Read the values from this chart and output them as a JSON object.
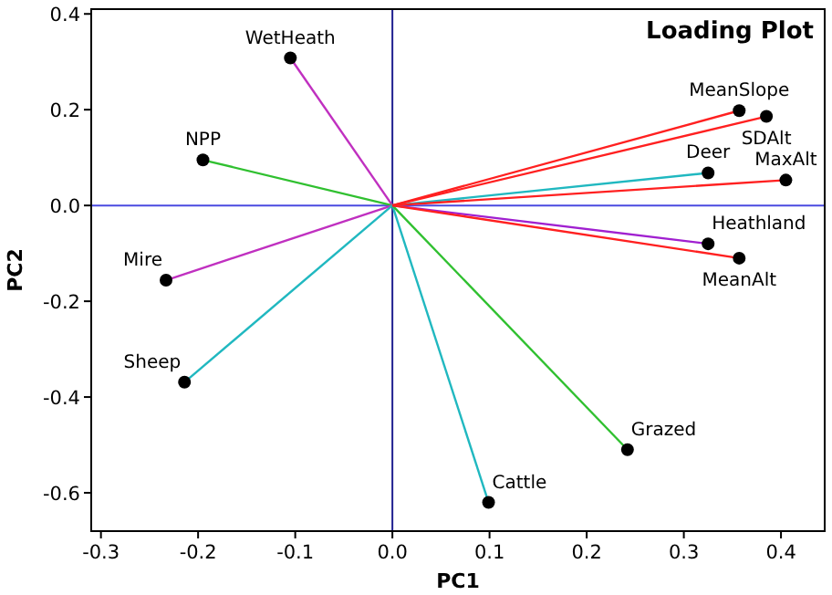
{
  "chart_data": {
    "type": "line",
    "title": "Loading Plot",
    "xlabel": "PC1",
    "ylabel": "PC2",
    "xlim": [
      -0.31,
      0.445
    ],
    "ylim": [
      -0.68,
      0.41
    ],
    "xticks": [
      -0.3,
      -0.2,
      -0.1,
      {
        "value": 0,
        "label": "0.0"
      },
      0.1,
      0.2,
      0.3,
      0.4
    ],
    "yticks": [
      -0.6,
      -0.4,
      -0.2,
      {
        "value": 0,
        "label": "0.0"
      },
      0.2,
      0.4
    ],
    "grid": false,
    "line_style": "solid",
    "ref_lines": [
      {
        "axis": "x",
        "value": 0,
        "color": "#202090"
      },
      {
        "axis": "y",
        "value": 0,
        "color": "#4a4ae0"
      }
    ],
    "series": [
      {
        "name": "WetHeath",
        "color": "#c030c0",
        "x": [
          0,
          -0.105
        ],
        "values": [
          0,
          0.308
        ],
        "marker": "none"
      },
      {
        "name": "NPP",
        "color": "#30c030",
        "x": [
          0,
          -0.195
        ],
        "values": [
          0,
          0.095
        ],
        "marker": "none"
      },
      {
        "name": "Mire",
        "color": "#c030c0",
        "x": [
          0,
          -0.233
        ],
        "values": [
          0,
          -0.156
        ],
        "marker": "none"
      },
      {
        "name": "Sheep",
        "color": "#20b8c0",
        "x": [
          0,
          -0.214
        ],
        "values": [
          0,
          -0.369
        ],
        "marker": "none"
      },
      {
        "name": "Cattle",
        "color": "#20b8c0",
        "x": [
          0,
          0.099
        ],
        "values": [
          0,
          -0.62
        ],
        "marker": "none"
      },
      {
        "name": "Grazed",
        "color": "#30c030",
        "x": [
          0,
          0.242
        ],
        "values": [
          0,
          -0.51
        ],
        "marker": "none"
      },
      {
        "name": "Heathland",
        "color": "#a020d0",
        "x": [
          0,
          0.325
        ],
        "values": [
          0,
          -0.08
        ],
        "marker": "none"
      },
      {
        "name": "MeanAlt",
        "color": "#ff2020",
        "x": [
          0,
          0.357
        ],
        "values": [
          0,
          -0.11
        ],
        "marker": "none"
      },
      {
        "name": "Deer",
        "color": "#20b8c0",
        "x": [
          0,
          0.325
        ],
        "values": [
          0,
          0.068
        ],
        "marker": "none"
      },
      {
        "name": "MaxAlt",
        "color": "#ff2020",
        "x": [
          0,
          0.405
        ],
        "values": [
          0,
          0.053
        ],
        "marker": "none"
      },
      {
        "name": "MeanSlope",
        "color": "#ff2020",
        "x": [
          0,
          0.357
        ],
        "values": [
          0,
          0.198
        ],
        "marker": "none"
      },
      {
        "name": "SDAlt",
        "color": "#ff2020",
        "x": [
          0,
          0.385
        ],
        "values": [
          0,
          0.186
        ],
        "marker": "none"
      },
      {
        "type": "scatter",
        "color": "#000000",
        "marker": "circle",
        "x": [
          -0.105,
          -0.195,
          -0.233,
          -0.214,
          0.099,
          0.242,
          0.325,
          0.357,
          0.325,
          0.405,
          0.357,
          0.385
        ],
        "values": [
          0.308,
          0.095,
          -0.156,
          -0.369,
          -0.62,
          -0.51,
          -0.08,
          -0.11,
          0.068,
          0.053,
          0.198,
          0.186
        ]
      }
    ]
  }
}
